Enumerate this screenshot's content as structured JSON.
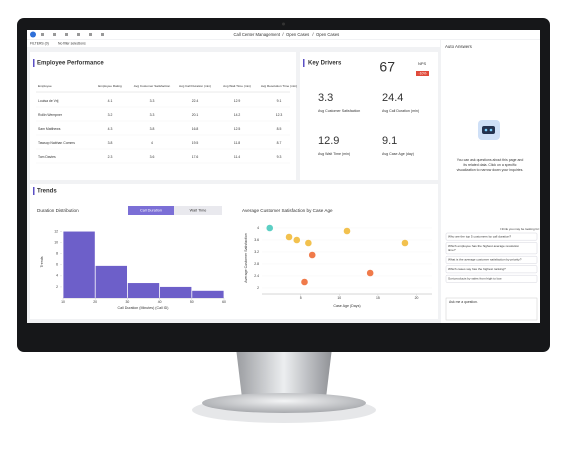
{
  "header": {
    "title": "Call Center Management",
    "breadcrumbs": [
      "Open Cases",
      "Open Cases"
    ]
  },
  "filters": {
    "label": "FILTERS (0)",
    "status": "No filter selections"
  },
  "employee_performance": {
    "title": "Employee Performance",
    "columns": [
      "Employee",
      "Employee Rating",
      "Avg Customer Satisfaction",
      "Avg Call Duration (min)",
      "Avg Wait Time (min)",
      "Avg Resolution Time (min)"
    ],
    "rows": [
      [
        "Louisa de Vrij",
        4.1,
        3.3,
        22.4,
        12.9,
        9.1
      ],
      [
        "Rollin Wempner",
        3.2,
        3.3,
        20.1,
        14.2,
        12.3
      ],
      [
        "Sam Matthews",
        4.3,
        3.8,
        16.8,
        12.5,
        8.5
      ],
      [
        "Tawsop Nabhan Comms",
        3.8,
        4.0,
        19.5,
        11.8,
        8.7
      ],
      [
        "Tom Davies",
        2.3,
        3.6,
        17.6,
        11.4,
        9.3
      ]
    ]
  },
  "key_drivers": {
    "title": "Key Drivers",
    "nps": {
      "value": 67,
      "label": "NPS",
      "change": "-10%"
    },
    "metrics": [
      {
        "value": 3.3,
        "label": "Avg Customer Satisfaction"
      },
      {
        "value": 24.4,
        "label": "Avg Call Duration (min)"
      },
      {
        "value": 12.9,
        "label": "Avg Wait Time (min)"
      },
      {
        "value": 9.1,
        "label": "Avg Case Age (day)"
      }
    ]
  },
  "trends": {
    "title": "Trends",
    "histogram": {
      "type": "histogram",
      "title": "Duration Distribution",
      "toggle": [
        "Call Duration",
        "Wait Time"
      ],
      "bins": [
        10,
        20,
        30,
        40,
        50,
        60
      ],
      "values": [
        12,
        5.8,
        2.7,
        2,
        1.3
      ],
      "color": "#6d5fc9",
      "xlim": [
        10,
        60
      ],
      "xticks": [
        10,
        20,
        30,
        40,
        50,
        60
      ],
      "ylim": [
        0,
        13
      ],
      "yticks": [
        2,
        4,
        6,
        8,
        10,
        12
      ],
      "xlabel": "Call Duration (Minutes) (Call ID)",
      "ylabel": "Trends"
    },
    "scatter": {
      "type": "scatter",
      "title": "Average Customer Satisfaction by Case Age",
      "x": [
        1,
        3.5,
        4.5,
        6,
        11,
        18.5,
        6.5,
        14,
        5.5
      ],
      "values": [
        4.0,
        3.7,
        3.6,
        3.5,
        3.9,
        3.5,
        3.1,
        2.5,
        2.2
      ],
      "colors": [
        "#5ccfc4",
        "#f2c14e",
        "#f2c14e",
        "#f2c14e",
        "#f2c14e",
        "#f2c14e",
        "#f07a4a",
        "#f07a4a",
        "#f07a4a"
      ],
      "xlim": [
        0,
        22
      ],
      "xticks": [
        5,
        10,
        15,
        20
      ],
      "ylim": [
        1.8,
        4.2
      ],
      "yticks": [
        2.0,
        2.4,
        2.8,
        3.2,
        3.6,
        4.0
      ],
      "xlabel": "Case Age (Days)",
      "ylabel": "Average Customer Satisfaction"
    }
  },
  "auto_answers": {
    "title": "Auto Answers",
    "intro": [
      "You can ask questions about this page and",
      "its related data. Click on a specific",
      "visualization to narrow down your inquiries."
    ],
    "hint": "I think you may be looking for:",
    "suggestions": [
      [
        "Who are the top 5 customers by call duration?"
      ],
      [
        "Which employee has the highest average resolution",
        "time?"
      ],
      [
        "What is the average customer satisfaction by priority?"
      ],
      [
        "Which cases say has the highest ranking?"
      ],
      [
        "Sort products by sales from high to low."
      ]
    ],
    "input": "Ask me a question."
  }
}
